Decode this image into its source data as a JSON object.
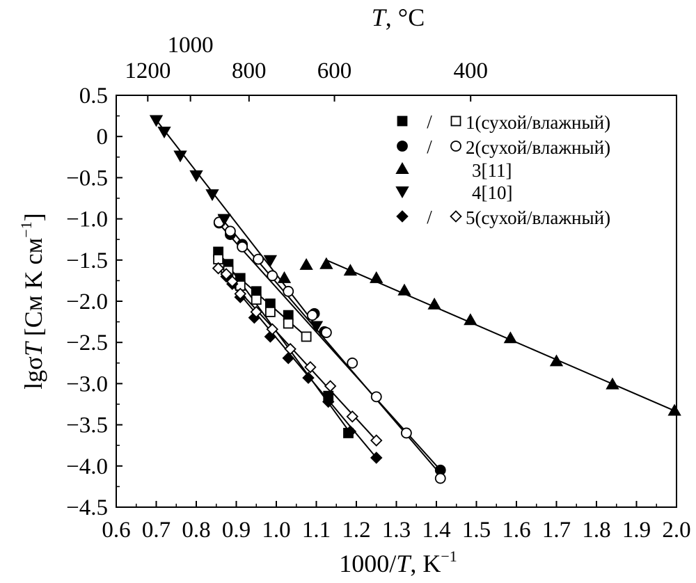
{
  "chart_data": {
    "type": "scatter",
    "title": "",
    "top_axis_title_var": "T",
    "top_axis_title_unit": ", °C",
    "top_ticks": [
      {
        "label": "1200",
        "value": 1200
      },
      {
        "label": "1000",
        "value": 1000
      },
      {
        "label": "800",
        "value": 800
      },
      {
        "label": "600",
        "value": 600
      },
      {
        "label": "400",
        "value": 400
      }
    ],
    "xlabel_num": "1000/",
    "xlabel_var": "T",
    "xlabel_unit": ", K",
    "xlabel_sup": "−1",
    "ylabel_pre": "lgσ",
    "ylabel_var": "T",
    "ylabel_unit": " [См K см",
    "ylabel_sup": "−1",
    "ylabel_post": "]",
    "xlim": [
      0.6,
      2.0
    ],
    "ylim": [
      -4.5,
      0.5
    ],
    "xticks": [
      "0.6",
      "0.7",
      "0.8",
      "0.9",
      "1.0",
      "1.1",
      "1.2",
      "1.3",
      "1.4",
      "1.5",
      "1.6",
      "1.7",
      "1.8",
      "1.9",
      "2.0"
    ],
    "yticks": [
      "0.5",
      "0",
      "−0.5",
      "−1.0",
      "−1.5",
      "−2.0",
      "−2.5",
      "−3.0",
      "−3.5",
      "−4.0",
      "−4.5"
    ],
    "grid": false,
    "legend_position": "top-right",
    "legend": [
      {
        "filled": "square",
        "open": "square",
        "sep": "/",
        "label": "1(сухой/влажный)"
      },
      {
        "filled": "circle",
        "open": "circle",
        "sep": "/",
        "label": "2(сухой/влажный)"
      },
      {
        "filled": "triangle-up",
        "label": "3[11]"
      },
      {
        "filled": "triangle-down",
        "label": "4[10]"
      },
      {
        "filled": "diamond",
        "open": "diamond",
        "sep": "/",
        "label": "5(сухой/влажный)"
      }
    ],
    "series": [
      {
        "marker": "square",
        "filled": true,
        "x": [
          0.855,
          0.88,
          0.91,
          0.95,
          0.985,
          1.03,
          1.13,
          1.18
        ],
        "y": [
          -1.4,
          -1.55,
          -1.72,
          -1.88,
          -2.03,
          -2.17,
          -3.15,
          -3.6
        ]
      },
      {
        "marker": "square",
        "filled": false,
        "x": [
          0.855,
          0.88,
          0.91,
          0.95,
          0.985,
          1.03,
          1.075
        ],
        "y": [
          -1.49,
          -1.63,
          -1.81,
          -1.98,
          -2.13,
          -2.27,
          -2.43
        ]
      },
      {
        "marker": "circle",
        "filled": true,
        "x": [
          0.857,
          0.885,
          0.915,
          1.095,
          1.12,
          1.41
        ],
        "y": [
          -1.05,
          -1.19,
          -1.31,
          -2.15,
          -2.37,
          -4.05
        ]
      },
      {
        "marker": "circle",
        "filled": false,
        "x": [
          0.857,
          0.885,
          0.915,
          0.955,
          0.99,
          1.03,
          1.09,
          1.125,
          1.19,
          1.25,
          1.325,
          1.41
        ],
        "y": [
          -1.04,
          -1.15,
          -1.34,
          -1.49,
          -1.69,
          -1.88,
          -2.17,
          -2.38,
          -2.75,
          -3.16,
          -3.6,
          -4.15
        ]
      },
      {
        "marker": "triangle-up",
        "filled": true,
        "x": [
          1.02,
          1.075,
          1.125,
          1.185,
          1.25,
          1.32,
          1.395,
          1.485,
          1.585,
          1.7,
          1.84,
          1.995
        ],
        "y": [
          -1.72,
          -1.56,
          -1.55,
          -1.63,
          -1.72,
          -1.87,
          -2.04,
          -2.23,
          -2.45,
          -2.73,
          -3.01,
          -3.33
        ]
      },
      {
        "marker": "triangle-down",
        "filled": true,
        "x": [
          0.7,
          0.72,
          0.76,
          0.8,
          0.84,
          0.87,
          0.985,
          1.1
        ],
        "y": [
          0.2,
          0.06,
          -0.23,
          -0.47,
          -0.7,
          -1.0,
          -1.5,
          -2.3
        ]
      },
      {
        "marker": "diamond",
        "filled": true,
        "x": [
          0.855,
          0.875,
          0.89,
          0.91,
          0.945,
          0.985,
          1.03,
          1.08,
          1.13,
          1.185,
          1.25
        ],
        "y": [
          -1.6,
          -1.7,
          -1.79,
          -1.95,
          -2.2,
          -2.43,
          -2.69,
          -2.93,
          -3.22,
          -3.58,
          -3.9
        ]
      },
      {
        "marker": "diamond",
        "filled": false,
        "x": [
          0.855,
          0.875,
          0.89,
          0.91,
          0.95,
          0.99,
          1.035,
          1.085,
          1.135,
          1.19,
          1.25
        ],
        "y": [
          -1.6,
          -1.67,
          -1.76,
          -1.91,
          -2.13,
          -2.34,
          -2.58,
          -2.8,
          -3.03,
          -3.4,
          -3.69
        ]
      }
    ],
    "fit_lines": [
      {
        "x": [
          0.855,
          1.185
        ],
        "y": [
          -1.4,
          -3.6
        ]
      },
      {
        "x": [
          0.855,
          1.075
        ],
        "y": [
          -1.49,
          -2.43
        ]
      },
      {
        "x": [
          0.855,
          1.41
        ],
        "y": [
          -1.05,
          -4.05
        ]
      },
      {
        "x": [
          0.855,
          1.41
        ],
        "y": [
          -0.95,
          -4.1
        ]
      },
      {
        "x": [
          0.7,
          1.1
        ],
        "y": [
          0.2,
          -2.3
        ]
      },
      {
        "x": [
          1.125,
          1.995
        ],
        "y": [
          -1.5,
          -3.33
        ]
      },
      {
        "x": [
          0.855,
          1.25
        ],
        "y": [
          -1.6,
          -3.9
        ]
      },
      {
        "x": [
          0.855,
          1.25
        ],
        "y": [
          -1.6,
          -3.69
        ]
      }
    ]
  }
}
